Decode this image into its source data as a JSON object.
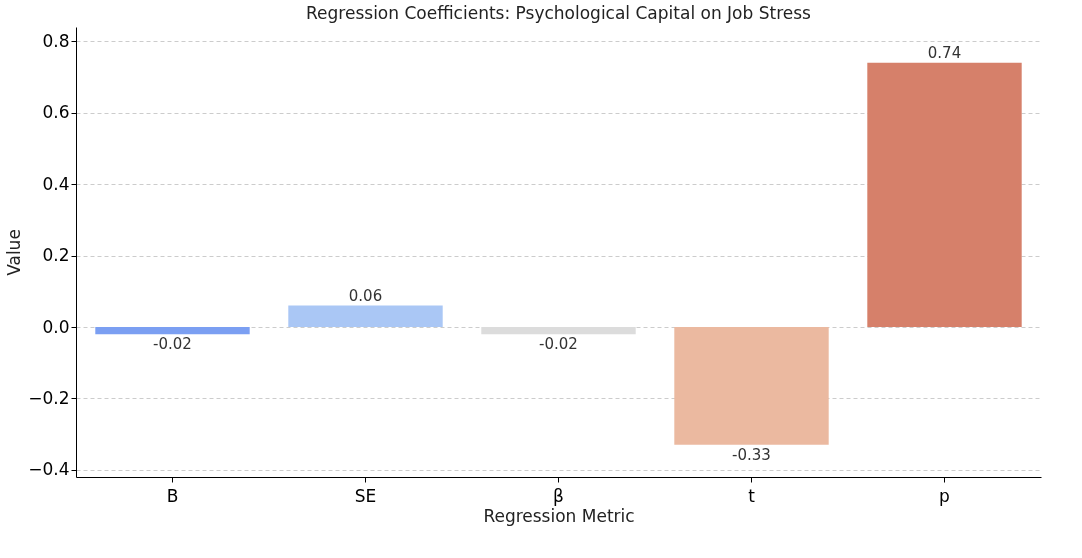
{
  "chart_data": {
    "type": "bar",
    "title": "Regression Coefficients: Psychological Capital on Job Stress",
    "xlabel": "Regression Metric",
    "ylabel": "Value",
    "categories": [
      "B",
      "SE",
      "β",
      "t",
      "p"
    ],
    "values": [
      -0.02,
      0.06,
      -0.02,
      -0.33,
      0.74
    ],
    "colors": [
      "#7b9ff2",
      "#aac7f5",
      "#dcdcdc",
      "#ebb9a0",
      "#d6806a"
    ],
    "ylim": [
      -0.42,
      0.84
    ],
    "yticks": [
      {
        "value": -0.4,
        "label": "−0.4"
      },
      {
        "value": -0.2,
        "label": "−0.2"
      },
      {
        "value": 0.0,
        "label": "0.0"
      },
      0.2,
      0.4,
      0.6,
      0.8
    ],
    "grid": "y",
    "data_labels": true
  }
}
